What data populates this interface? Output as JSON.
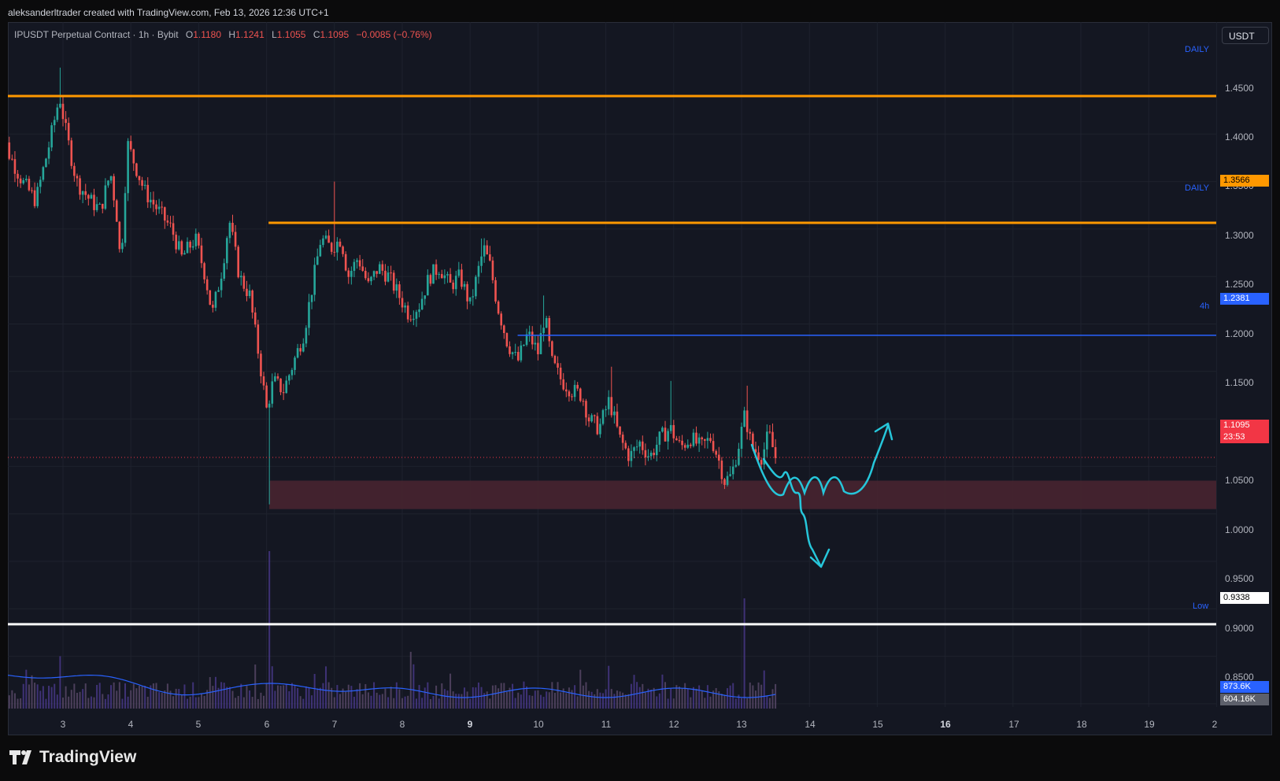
{
  "header": {
    "caption": "aleksanderltrader created with TradingView.com, Feb 13, 2026 12:36 UTC+1"
  },
  "legend": {
    "symbol": "IPUSDT Perpetual Contract · 1h · Bybit",
    "open_label": "O",
    "open": "1.1180",
    "high_label": "H",
    "high": "1.1241",
    "low_label": "L",
    "low": "1.1055",
    "close_label": "C",
    "close": "1.1095",
    "change": "−0.0085 (−0.76%)"
  },
  "currency_button": "USDT",
  "price_axis": {
    "labels": [
      "1.4500",
      "1.4000",
      "1.3500",
      "1.3000",
      "1.2500",
      "1.2000",
      "1.1500",
      "1.1000",
      "1.0500",
      "1.0000",
      "0.9500",
      "0.9000",
      "0.8500"
    ],
    "current_price": "1.1095",
    "countdown": "23:53",
    "volume_tag": "873.6K",
    "volume_ma_tag": "604.16K"
  },
  "levels": [
    {
      "price": 1.49,
      "label": "DAILY",
      "tag": "",
      "color": "#ff9800"
    },
    {
      "price": 1.3566,
      "label": "DAILY",
      "tag": "1.3566",
      "color": "#ff9800"
    },
    {
      "price": 1.2381,
      "label": "4h",
      "tag": "1.2381",
      "color": "#2962ff"
    },
    {
      "price": 0.9338,
      "label": "Low",
      "tag": "0.9338",
      "color": "#ffffff"
    }
  ],
  "demand_zone": {
    "top": 1.085,
    "bottom": 1.055,
    "color": "#4a2530"
  },
  "time_axis": {
    "labels": [
      "3",
      "4",
      "5",
      "6",
      "7",
      "8",
      "9",
      "10",
      "11",
      "12",
      "13",
      "14",
      "15",
      "16",
      "17",
      "18",
      "19",
      "2"
    ],
    "bold": [
      "9",
      "16"
    ]
  },
  "colors": {
    "up": "#26a69a",
    "down": "#ef5350",
    "drawing": "#26c6da",
    "background": "#141722"
  },
  "icons": {
    "brand": "tradingview-logo-icon"
  },
  "brand_text": "TradingView",
  "chart_data": {
    "type": "candlestick",
    "timeframe": "1h",
    "close_path": [
      [
        2.0,
        1.48
      ],
      [
        2.2,
        1.43
      ],
      [
        2.4,
        1.4
      ],
      [
        2.6,
        1.38
      ],
      [
        2.8,
        1.44
      ],
      [
        2.95,
        1.49
      ],
      [
        3.05,
        1.45
      ],
      [
        3.2,
        1.4
      ],
      [
        3.4,
        1.38
      ],
      [
        3.55,
        1.37
      ],
      [
        3.7,
        1.41
      ],
      [
        3.8,
        1.36
      ],
      [
        3.85,
        1.31
      ],
      [
        3.95,
        1.44
      ],
      [
        4.05,
        1.42
      ],
      [
        4.2,
        1.39
      ],
      [
        4.4,
        1.37
      ],
      [
        4.6,
        1.35
      ],
      [
        4.75,
        1.32
      ],
      [
        4.95,
        1.34
      ],
      [
        5.1,
        1.3
      ],
      [
        5.2,
        1.26
      ],
      [
        5.35,
        1.31
      ],
      [
        5.45,
        1.36
      ],
      [
        5.6,
        1.3
      ],
      [
        5.75,
        1.28
      ],
      [
        5.9,
        1.21
      ],
      [
        6.0,
        1.16
      ],
      [
        6.1,
        1.19
      ],
      [
        6.25,
        1.18
      ],
      [
        6.4,
        1.21
      ],
      [
        6.55,
        1.24
      ],
      [
        6.7,
        1.3
      ],
      [
        6.8,
        1.34
      ],
      [
        6.95,
        1.33
      ],
      [
        7.1,
        1.34
      ],
      [
        7.2,
        1.3
      ],
      [
        7.35,
        1.32
      ],
      [
        7.5,
        1.29
      ],
      [
        7.65,
        1.31
      ],
      [
        7.8,
        1.3
      ],
      [
        7.95,
        1.28
      ],
      [
        8.1,
        1.26
      ],
      [
        8.25,
        1.27
      ],
      [
        8.4,
        1.3
      ],
      [
        8.55,
        1.31
      ],
      [
        8.7,
        1.29
      ],
      [
        8.85,
        1.3
      ],
      [
        9.0,
        1.27
      ],
      [
        9.1,
        1.3
      ],
      [
        9.2,
        1.33
      ],
      [
        9.3,
        1.31
      ],
      [
        9.4,
        1.27
      ],
      [
        9.55,
        1.23
      ],
      [
        9.7,
        1.21
      ],
      [
        9.85,
        1.24
      ],
      [
        10.0,
        1.22
      ],
      [
        10.1,
        1.26
      ],
      [
        10.2,
        1.21
      ],
      [
        10.35,
        1.19
      ],
      [
        10.5,
        1.18
      ],
      [
        10.65,
        1.175
      ],
      [
        10.75,
        1.15
      ],
      [
        10.9,
        1.14
      ],
      [
        11.05,
        1.17
      ],
      [
        11.2,
        1.13
      ],
      [
        11.35,
        1.11
      ],
      [
        11.5,
        1.125
      ],
      [
        11.65,
        1.11
      ],
      [
        11.8,
        1.13
      ],
      [
        11.95,
        1.14
      ],
      [
        12.1,
        1.12
      ],
      [
        12.25,
        1.13
      ],
      [
        12.4,
        1.12
      ],
      [
        12.55,
        1.13
      ],
      [
        12.65,
        1.11
      ],
      [
        12.75,
        1.085
      ],
      [
        12.85,
        1.09
      ],
      [
        12.95,
        1.12
      ],
      [
        13.05,
        1.155
      ],
      [
        13.15,
        1.12
      ],
      [
        13.3,
        1.11
      ],
      [
        13.4,
        1.135
      ],
      [
        13.5,
        1.1095
      ]
    ],
    "annotations": {
      "scenario_up": "zigzag inside zone then bounce up",
      "scenario_down": "break below zone toward 1.00"
    },
    "ylim": [
      0.82,
      1.52
    ]
  }
}
